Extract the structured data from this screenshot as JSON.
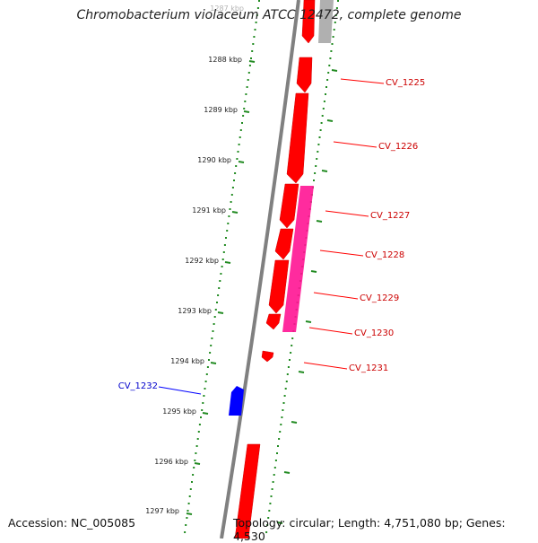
{
  "title": "Chromobacterium violaceum ATCC 12472, complete genome",
  "footer": {
    "accession": "Accession: NC_005085",
    "topology": "Topology: circular; Length: 4,751,080 bp; Genes: 4,530"
  },
  "scale": {
    "unit": "kbp",
    "ticks": [
      "1287 kbp",
      "1288 kbp",
      "1289 kbp",
      "1290 kbp",
      "1291 kbp",
      "1292 kbp",
      "1293 kbp",
      "1294 kbp",
      "1295 kbp",
      "1296 kbp",
      "1297 kbp"
    ]
  },
  "colors": {
    "backbone": "#808080",
    "forward_gene": "#ff0000",
    "reverse_gene": "#0000ff",
    "feature_magenta": "#ff1493",
    "other_feature": "#b0b0b0",
    "tick_mark": "#228b22"
  },
  "genes": [
    {
      "label": "CV_1225",
      "color": "#cc0000"
    },
    {
      "label": "CV_1226",
      "color": "#cc0000"
    },
    {
      "label": "CV_1227",
      "color": "#cc0000"
    },
    {
      "label": "CV_1228",
      "color": "#cc0000"
    },
    {
      "label": "CV_1229",
      "color": "#cc0000"
    },
    {
      "label": "CV_1230",
      "color": "#cc0000"
    },
    {
      "label": "CV_1231",
      "color": "#cc0000"
    },
    {
      "label": "CV_1232",
      "color": "#0000cc"
    }
  ]
}
